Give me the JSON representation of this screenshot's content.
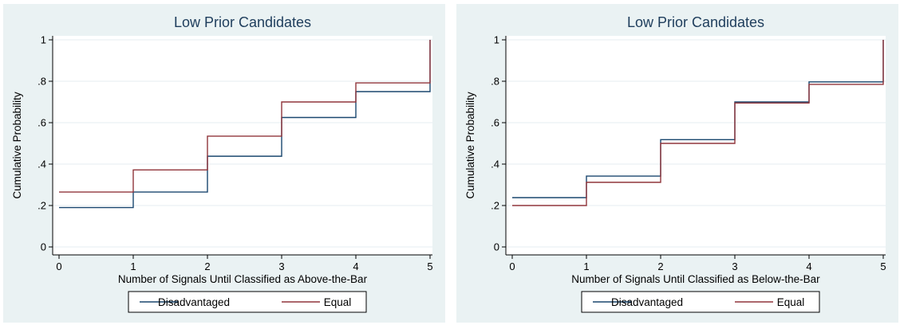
{
  "chart_data": [
    {
      "type": "line",
      "step": true,
      "title": "Low Prior Candidates",
      "xlabel": "Number of Signals Until Classified as Above-the-Bar",
      "ylabel": "Cumulative Probability",
      "xlim": [
        0,
        5
      ],
      "ylim": [
        0,
        1
      ],
      "xticks": [
        "0",
        "1",
        "2",
        "3",
        "4",
        "5"
      ],
      "yticks": [
        "0",
        ".2",
        ".4",
        ".6",
        ".8",
        "1"
      ],
      "grid": true,
      "legend": "bottom-center",
      "x": [
        0,
        1,
        2,
        3,
        4,
        5
      ],
      "series": [
        {
          "name": "Disadvantaged",
          "color": "#1a476f",
          "values": [
            0.19,
            0.265,
            0.438,
            0.625,
            0.75,
            1.0
          ]
        },
        {
          "name": "Equal",
          "color": "#90353b",
          "values": [
            0.265,
            0.372,
            0.535,
            0.7,
            0.792,
            1.0
          ]
        }
      ]
    },
    {
      "type": "line",
      "step": true,
      "title": "Low Prior Candidates",
      "xlabel": "Number of Signals Until Classified as Below-the-Bar",
      "ylabel": "Cumulative Probability",
      "xlim": [
        0,
        5
      ],
      "ylim": [
        0,
        1
      ],
      "xticks": [
        "0",
        "1",
        "2",
        "3",
        "4",
        "5"
      ],
      "yticks": [
        "0",
        ".2",
        ".4",
        ".6",
        ".8",
        "1"
      ],
      "grid": true,
      "legend": "bottom-center",
      "x": [
        0,
        1,
        2,
        3,
        4,
        5
      ],
      "series": [
        {
          "name": "Disadvantaged",
          "color": "#1a476f",
          "values": [
            0.238,
            0.342,
            0.518,
            0.7,
            0.797,
            1.0
          ]
        },
        {
          "name": "Equal",
          "color": "#90353b",
          "values": [
            0.2,
            0.312,
            0.5,
            0.695,
            0.785,
            1.0
          ]
        }
      ]
    }
  ]
}
